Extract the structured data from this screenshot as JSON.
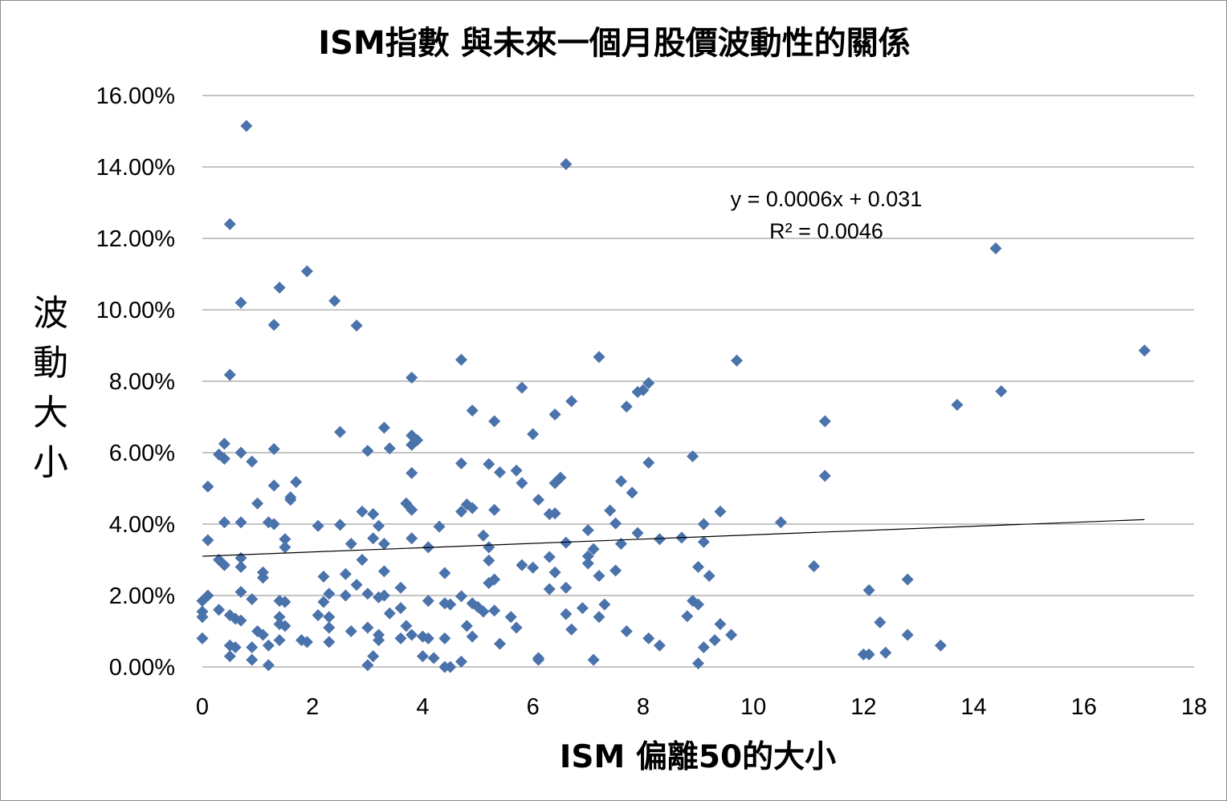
{
  "chart_data": {
    "type": "scatter",
    "title": "ISM指數 與未來一個月股價波動性的關係",
    "xlabel": "ISM 偏離50的大小",
    "ylabel": "波動大小",
    "xlim": [
      0,
      18
    ],
    "ylim": [
      0,
      0.16
    ],
    "x_ticks": [
      "0",
      "2",
      "4",
      "6",
      "8",
      "10",
      "12",
      "14",
      "16",
      "18"
    ],
    "y_ticks": [
      "0.00%",
      "2.00%",
      "4.00%",
      "6.00%",
      "8.00%",
      "10.00%",
      "12.00%",
      "14.00%",
      "16.00%"
    ],
    "grid": "horizontal",
    "marker_color": "#4a72ab",
    "trendline": {
      "equation": "y = 0.0006x + 0.031",
      "r_squared": "R² = 0.0046",
      "slope": 0.0006,
      "intercept": 0.031,
      "x_range": [
        0,
        17.1
      ]
    },
    "points": [
      [
        0.8,
        0.1515
      ],
      [
        0.5,
        0.124
      ],
      [
        1.9,
        0.1108
      ],
      [
        1.4,
        0.1062
      ],
      [
        0.7,
        0.102
      ],
      [
        2.4,
        0.1025
      ],
      [
        1.3,
        0.0958
      ],
      [
        2.8,
        0.0956
      ],
      [
        6.6,
        0.1408
      ],
      [
        14.4,
        0.1172
      ],
      [
        17.1,
        0.0886
      ],
      [
        9.7,
        0.0858
      ],
      [
        7.2,
        0.0868
      ],
      [
        4.7,
        0.086
      ],
      [
        0.5,
        0.0818
      ],
      [
        3.8,
        0.081
      ],
      [
        5.8,
        0.0782
      ],
      [
        8.1,
        0.0795
      ],
      [
        8.0,
        0.0775
      ],
      [
        7.9,
        0.077
      ],
      [
        14.5,
        0.0772
      ],
      [
        13.7,
        0.0734
      ],
      [
        7.7,
        0.0729
      ],
      [
        6.7,
        0.0744
      ],
      [
        4.9,
        0.0718
      ],
      [
        6.4,
        0.0707
      ],
      [
        5.3,
        0.0688
      ],
      [
        11.3,
        0.0688
      ],
      [
        3.3,
        0.067
      ],
      [
        2.5,
        0.0658
      ],
      [
        6.0,
        0.0652
      ],
      [
        3.8,
        0.0648
      ],
      [
        3.9,
        0.0635
      ],
      [
        3.8,
        0.0622
      ],
      [
        3.4,
        0.0612
      ],
      [
        1.3,
        0.061
      ],
      [
        3.0,
        0.0605
      ],
      [
        0.4,
        0.0625
      ],
      [
        0.3,
        0.0595
      ],
      [
        0.4,
        0.0583
      ],
      [
        0.7,
        0.06
      ],
      [
        0.9,
        0.0575
      ],
      [
        4.7,
        0.057
      ],
      [
        5.2,
        0.0568
      ],
      [
        8.1,
        0.0572
      ],
      [
        8.9,
        0.059
      ],
      [
        5.7,
        0.055
      ],
      [
        5.4,
        0.0545
      ],
      [
        3.8,
        0.0543
      ],
      [
        6.5,
        0.053
      ],
      [
        6.4,
        0.0515
      ],
      [
        5.8,
        0.0515
      ],
      [
        7.6,
        0.052
      ],
      [
        11.3,
        0.0535
      ],
      [
        0.1,
        0.0505
      ],
      [
        1.3,
        0.0508
      ],
      [
        1.7,
        0.0518
      ],
      [
        7.8,
        0.0488
      ],
      [
        1.6,
        0.0475
      ],
      [
        1.6,
        0.0468
      ],
      [
        6.1,
        0.0468
      ],
      [
        1.0,
        0.0458
      ],
      [
        3.7,
        0.0458
      ],
      [
        4.8,
        0.0455
      ],
      [
        4.9,
        0.0445
      ],
      [
        5.3,
        0.044
      ],
      [
        4.7,
        0.0435
      ],
      [
        7.4,
        0.0438
      ],
      [
        6.3,
        0.0428
      ],
      [
        6.4,
        0.043
      ],
      [
        3.8,
        0.044
      ],
      [
        2.9,
        0.0435
      ],
      [
        3.1,
        0.0428
      ],
      [
        9.4,
        0.0435
      ],
      [
        0.4,
        0.0405
      ],
      [
        0.7,
        0.0405
      ],
      [
        1.2,
        0.0405
      ],
      [
        1.3,
        0.04
      ],
      [
        2.1,
        0.0395
      ],
      [
        2.5,
        0.0398
      ],
      [
        3.2,
        0.0395
      ],
      [
        4.3,
        0.0393
      ],
      [
        7.5,
        0.0402
      ],
      [
        9.1,
        0.04
      ],
      [
        10.5,
        0.0405
      ],
      [
        7.0,
        0.0383
      ],
      [
        5.1,
        0.0368
      ],
      [
        7.9,
        0.0375
      ],
      [
        0.1,
        0.0355
      ],
      [
        1.5,
        0.0358
      ],
      [
        3.1,
        0.036
      ],
      [
        3.8,
        0.036
      ],
      [
        8.3,
        0.0358
      ],
      [
        8.7,
        0.0362
      ],
      [
        9.1,
        0.035
      ],
      [
        6.6,
        0.0348
      ],
      [
        7.6,
        0.0345
      ],
      [
        1.5,
        0.0335
      ],
      [
        2.7,
        0.0345
      ],
      [
        3.3,
        0.0345
      ],
      [
        4.1,
        0.0335
      ],
      [
        5.2,
        0.0335
      ],
      [
        7.1,
        0.033
      ],
      [
        7.0,
        0.031
      ],
      [
        0.3,
        0.03
      ],
      [
        0.7,
        0.0305
      ],
      [
        2.9,
        0.03
      ],
      [
        5.2,
        0.0298
      ],
      [
        6.3,
        0.0308
      ],
      [
        0.4,
        0.0285
      ],
      [
        0.7,
        0.028
      ],
      [
        5.8,
        0.0285
      ],
      [
        6.0,
        0.0278
      ],
      [
        7.0,
        0.029
      ],
      [
        9.0,
        0.028
      ],
      [
        11.1,
        0.0282
      ],
      [
        2.6,
        0.026
      ],
      [
        2.2,
        0.0253
      ],
      [
        3.3,
        0.0268
      ],
      [
        4.4,
        0.0263
      ],
      [
        1.1,
        0.0265
      ],
      [
        1.1,
        0.025
      ],
      [
        6.4,
        0.0265
      ],
      [
        7.2,
        0.0255
      ],
      [
        7.5,
        0.027
      ],
      [
        9.2,
        0.0255
      ],
      [
        12.8,
        0.0245
      ],
      [
        2.8,
        0.023
      ],
      [
        5.2,
        0.0235
      ],
      [
        5.3,
        0.0245
      ],
      [
        3.6,
        0.0222
      ],
      [
        6.3,
        0.0218
      ],
      [
        6.6,
        0.0222
      ],
      [
        12.1,
        0.0215
      ],
      [
        0.1,
        0.02
      ],
      [
        0.7,
        0.021
      ],
      [
        2.3,
        0.0205
      ],
      [
        2.6,
        0.02
      ],
      [
        3.0,
        0.0205
      ],
      [
        3.2,
        0.0195
      ],
      [
        3.3,
        0.02
      ],
      [
        4.7,
        0.0198
      ],
      [
        0.0,
        0.0185
      ],
      [
        0.9,
        0.019
      ],
      [
        1.4,
        0.0185
      ],
      [
        1.5,
        0.0182
      ],
      [
        2.2,
        0.0182
      ],
      [
        4.1,
        0.0185
      ],
      [
        4.4,
        0.0178
      ],
      [
        4.5,
        0.0175
      ],
      [
        4.9,
        0.0178
      ],
      [
        5.0,
        0.0168
      ],
      [
        6.9,
        0.0165
      ],
      [
        7.3,
        0.0175
      ],
      [
        8.9,
        0.0185
      ],
      [
        9.0,
        0.0175
      ],
      [
        3.6,
        0.0165
      ],
      [
        5.1,
        0.0155
      ],
      [
        5.3,
        0.0158
      ],
      [
        0.0,
        0.0155
      ],
      [
        0.3,
        0.016
      ],
      [
        0.0,
        0.014
      ],
      [
        0.5,
        0.0145
      ],
      [
        0.6,
        0.0135
      ],
      [
        0.7,
        0.013
      ],
      [
        1.4,
        0.014
      ],
      [
        2.1,
        0.0145
      ],
      [
        2.3,
        0.014
      ],
      [
        3.4,
        0.015
      ],
      [
        5.6,
        0.014
      ],
      [
        6.6,
        0.0148
      ],
      [
        7.2,
        0.014
      ],
      [
        8.8,
        0.0142
      ],
      [
        1.4,
        0.012
      ],
      [
        1.5,
        0.0115
      ],
      [
        4.8,
        0.0115
      ],
      [
        5.7,
        0.011
      ],
      [
        6.7,
        0.0105
      ],
      [
        9.4,
        0.012
      ],
      [
        12.3,
        0.0125
      ],
      [
        1.0,
        0.01
      ],
      [
        1.1,
        0.009
      ],
      [
        2.3,
        0.011
      ],
      [
        2.7,
        0.01
      ],
      [
        3.0,
        0.011
      ],
      [
        3.2,
        0.009
      ],
      [
        3.7,
        0.0115
      ],
      [
        3.8,
        0.009
      ],
      [
        7.7,
        0.01
      ],
      [
        9.6,
        0.009
      ],
      [
        12.8,
        0.009
      ],
      [
        0.0,
        0.008
      ],
      [
        1.4,
        0.0075
      ],
      [
        1.8,
        0.0075
      ],
      [
        1.9,
        0.007
      ],
      [
        2.3,
        0.007
      ],
      [
        3.2,
        0.0075
      ],
      [
        3.6,
        0.008
      ],
      [
        4.0,
        0.0085
      ],
      [
        4.1,
        0.008
      ],
      [
        4.4,
        0.008
      ],
      [
        4.9,
        0.0085
      ],
      [
        8.1,
        0.008
      ],
      [
        9.3,
        0.0075
      ],
      [
        0.5,
        0.006
      ],
      [
        0.6,
        0.0055
      ],
      [
        0.9,
        0.0055
      ],
      [
        1.2,
        0.006
      ],
      [
        5.4,
        0.0065
      ],
      [
        8.3,
        0.006
      ],
      [
        9.1,
        0.0055
      ],
      [
        13.4,
        0.006
      ],
      [
        0.5,
        0.003
      ],
      [
        0.9,
        0.002
      ],
      [
        3.1,
        0.003
      ],
      [
        4.0,
        0.003
      ],
      [
        4.2,
        0.0025
      ],
      [
        6.1,
        0.002
      ],
      [
        7.1,
        0.002
      ],
      [
        12.0,
        0.0035
      ],
      [
        12.1,
        0.0035
      ],
      [
        12.4,
        0.004
      ],
      [
        1.2,
        0.0005
      ],
      [
        3.0,
        0.0005
      ],
      [
        4.4,
        0.0
      ],
      [
        4.5,
        0.0
      ],
      [
        4.7,
        0.0015
      ],
      [
        6.1,
        0.0025
      ],
      [
        9.0,
        0.001
      ]
    ]
  }
}
